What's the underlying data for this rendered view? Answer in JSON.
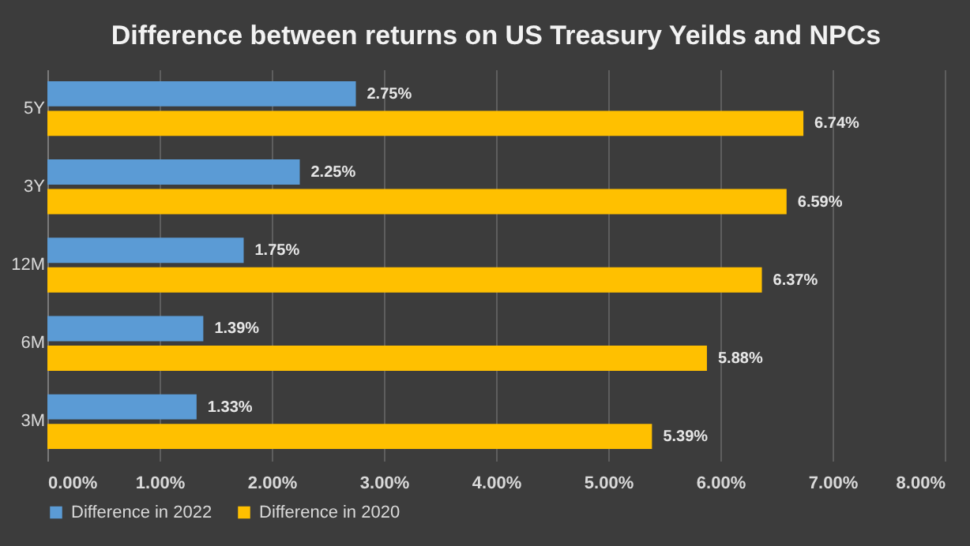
{
  "chart_data": {
    "type": "bar",
    "orientation": "horizontal",
    "title": "Difference between returns on US Treasury Yeilds and NPCs",
    "categories": [
      "5Y",
      "3Y",
      "12M",
      "6M",
      "3M"
    ],
    "series": [
      {
        "name": "Difference in 2022",
        "color": "#5b9bd5",
        "values": [
          2.75,
          2.25,
          1.75,
          1.39,
          1.33
        ],
        "value_labels": [
          "2.75%",
          "2.25%",
          "1.75%",
          "1.39%",
          "1.33%"
        ]
      },
      {
        "name": "Difference in 2020",
        "color": "#ffc000",
        "values": [
          6.74,
          6.59,
          6.37,
          5.88,
          5.39
        ],
        "value_labels": [
          "6.74%",
          "6.59%",
          "6.37%",
          "5.88%",
          "5.39%"
        ]
      }
    ],
    "xlim": [
      0,
      8
    ],
    "xticks": [
      {
        "value": 0,
        "label": "0.00%"
      },
      {
        "value": 1,
        "label": "1.00%"
      },
      {
        "value": 2,
        "label": "2.00%"
      },
      {
        "value": 3,
        "label": "3.00%"
      },
      {
        "value": 4,
        "label": "4.00%"
      },
      {
        "value": 5,
        "label": "5.00%"
      },
      {
        "value": 6,
        "label": "6.00%"
      },
      {
        "value": 7,
        "label": "7.00%"
      },
      {
        "value": 8,
        "label": "8.00%"
      }
    ],
    "grid": true,
    "legend": "bottom"
  }
}
